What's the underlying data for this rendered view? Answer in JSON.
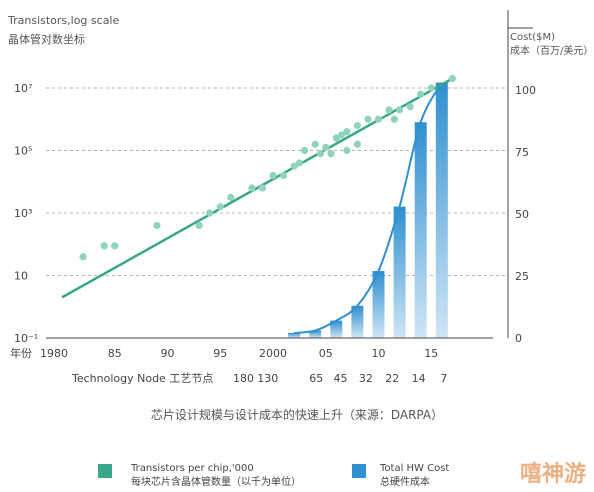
{
  "chart_data": {
    "type": "line+bar",
    "caption": "芯片设计规模与设计成本的快速上升（来源：DARPA）",
    "left_axis": {
      "label_line1": "Transistors,log scale",
      "label_line2": "晶体管对数坐标",
      "scale": "log",
      "tick_labels": [
        "10⁻¹",
        "10",
        "10³",
        "10⁵",
        "10⁷"
      ]
    },
    "right_axis": {
      "label_line1": "Cost($M)",
      "label_line2": "成本（百万/美元）",
      "range": [
        0,
        100
      ],
      "tick_labels": [
        "0",
        "25",
        "50",
        "75",
        "100"
      ]
    },
    "x_axis": {
      "year_label": "年份",
      "year_ticks": [
        "1980",
        "85",
        "90",
        "95",
        "2000",
        "05",
        "10",
        "15"
      ],
      "node_label": "Technology Node 工艺节点",
      "node_ticks": [
        "180",
        "130",
        "65",
        "45",
        "32",
        "22",
        "14",
        "7"
      ]
    },
    "series": [
      {
        "name": "Transistors per chip,'000",
        "name_cn": "每块芯片含晶体管数量（以千为单位）",
        "kind": "scatter+trend",
        "color": "#3aa588",
        "log10_points": [
          [
            1982,
            1.6
          ],
          [
            1984,
            1.95
          ],
          [
            1985,
            1.95
          ],
          [
            1989,
            2.6
          ],
          [
            1993,
            2.6
          ],
          [
            1994,
            3.0
          ],
          [
            1995,
            3.2
          ],
          [
            1996,
            3.5
          ],
          [
            1998,
            3.8
          ],
          [
            1999,
            3.8
          ],
          [
            2000,
            4.2
          ],
          [
            2001,
            4.2
          ],
          [
            2002,
            4.5
          ],
          [
            2002.5,
            4.6
          ],
          [
            2003,
            5.0
          ],
          [
            2004,
            5.2
          ],
          [
            2004.5,
            4.9
          ],
          [
            2005,
            5.1
          ],
          [
            2005.5,
            4.9
          ],
          [
            2006,
            5.4
          ],
          [
            2006.5,
            5.5
          ],
          [
            2007,
            5.0
          ],
          [
            2007,
            5.6
          ],
          [
            2008,
            5.2
          ],
          [
            2008,
            5.8
          ],
          [
            2009,
            6.0
          ],
          [
            2010,
            6.0
          ],
          [
            2011,
            6.3
          ],
          [
            2011.5,
            6.0
          ],
          [
            2012,
            6.3
          ],
          [
            2013,
            6.4
          ],
          [
            2014,
            6.8
          ],
          [
            2015,
            7.0
          ],
          [
            2017,
            7.3
          ]
        ],
        "trend_log10": [
          [
            1980,
            0.3
          ],
          [
            2017,
            7.3
          ]
        ]
      },
      {
        "name": "Total HW Cost",
        "name_cn": "总硬件成本",
        "kind": "bar+curve",
        "color": "#2f8fcf",
        "x": [
          2002,
          2004,
          2006,
          2008,
          2010,
          2012,
          2014,
          2016
        ],
        "values": [
          2,
          3,
          7,
          13,
          27,
          53,
          87,
          103
        ]
      }
    ]
  },
  "watermark": "嘻神游"
}
